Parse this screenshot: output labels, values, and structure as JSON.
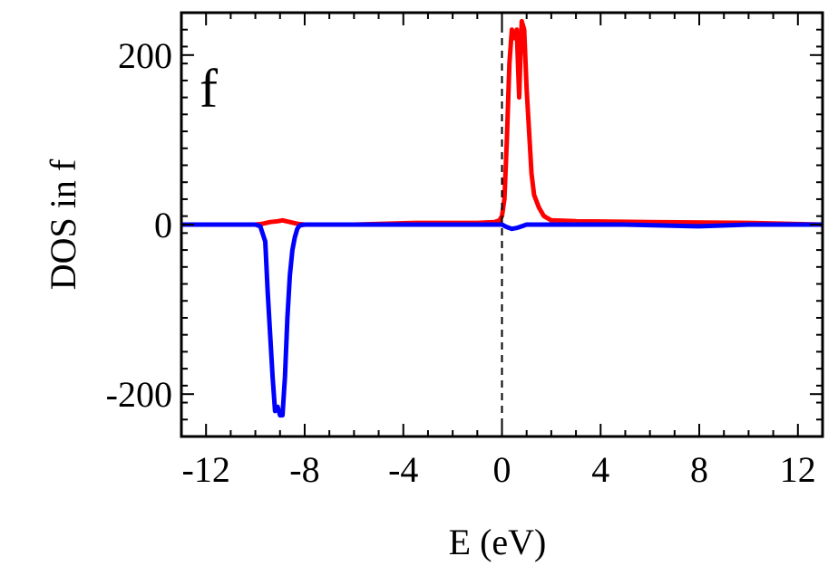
{
  "chart_data": {
    "type": "line",
    "panel_label": "f",
    "xlabel": "E (eV)",
    "ylabel": "DOS in f",
    "xlim": [
      -13,
      13
    ],
    "ylim": [
      -250,
      250
    ],
    "x_ticks": [
      -12,
      -8,
      -4,
      0,
      4,
      8,
      12
    ],
    "x_tick_labels": [
      "-12",
      "-8",
      "-4",
      "0",
      "4",
      "8",
      "12"
    ],
    "y_ticks": [
      -200,
      0,
      200
    ],
    "y_tick_labels": [
      "-200",
      "0",
      "200"
    ],
    "grid": false,
    "fermi_level": 0,
    "series": [
      {
        "color": "#ff0000",
        "x": [
          -13,
          -10.0,
          -9.7,
          -9.4,
          -9.1,
          -8.9,
          -8.6,
          -8.3,
          -8.0,
          -6,
          -3.5,
          -1,
          -0.3,
          -0.1,
          0.0,
          0.1,
          0.2,
          0.3,
          0.4,
          0.5,
          0.6,
          0.7,
          0.75,
          0.8,
          0.9,
          1.0,
          1.1,
          1.2,
          1.3,
          1.5,
          1.7,
          2.0,
          3,
          6,
          10,
          13
        ],
        "y": [
          0,
          0,
          1,
          3,
          4,
          5,
          3,
          1,
          0,
          0,
          2,
          2,
          3,
          5,
          10,
          30,
          100,
          190,
          230,
          220,
          230,
          150,
          200,
          240,
          230,
          160,
          110,
          60,
          35,
          20,
          10,
          5,
          4,
          3,
          2,
          0
        ]
      },
      {
        "color": "#0000ff",
        "x": [
          -13,
          -10.0,
          -9.8,
          -9.6,
          -9.5,
          -9.4,
          -9.3,
          -9.2,
          -9.1,
          -9.0,
          -8.9,
          -8.8,
          -8.7,
          -8.6,
          -8.5,
          -8.4,
          -8.3,
          -8.2,
          -8.0,
          -6,
          -1,
          0.0,
          0.2,
          0.4,
          0.6,
          0.8,
          1.0,
          2,
          5,
          8,
          10,
          13
        ],
        "y": [
          0,
          0,
          -2,
          -20,
          -80,
          -130,
          -180,
          -220,
          -215,
          -225,
          -225,
          -180,
          -110,
          -60,
          -30,
          -15,
          -5,
          -1,
          0,
          0,
          0,
          0,
          -3,
          -5,
          -4,
          -2,
          0,
          0,
          0,
          -2,
          0,
          0
        ]
      }
    ]
  }
}
